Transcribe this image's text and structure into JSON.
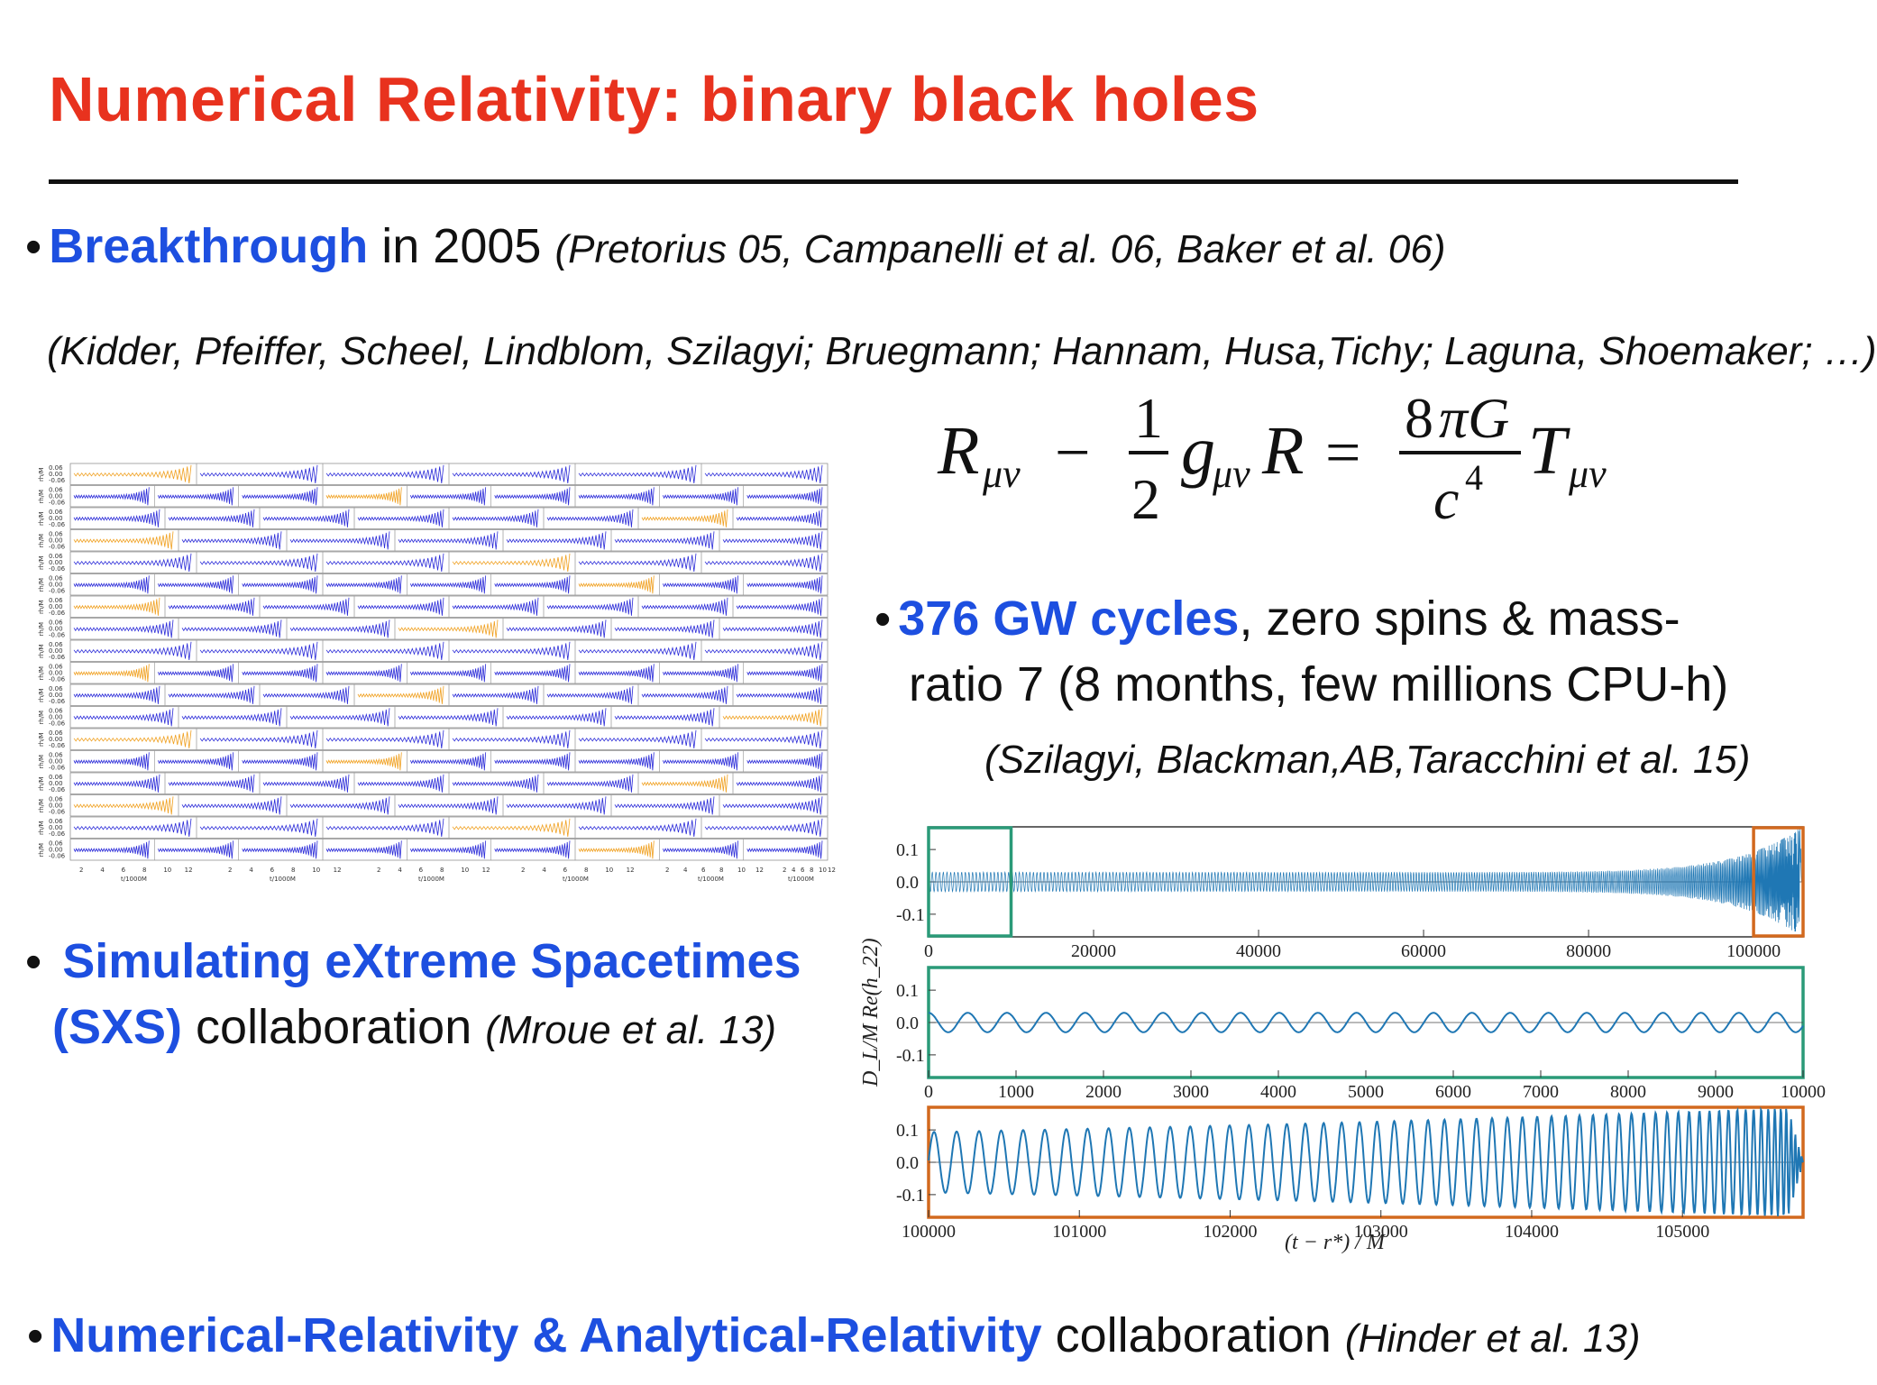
{
  "title": "Numerical Relativity: binary black holes",
  "bullet1": {
    "highlight": "Breakthrough",
    "text": " in 2005 ",
    "cite": "(Pretorius 05, Campanelli et al. 06, Baker et al. 06)"
  },
  "cite_list": "(Kidder, Pfeiffer, Scheel, Lindblom, Szilagyi; Bruegmann; Hannam, Husa,Tichy; Laguna, Shoemaker; …)",
  "equation": "R_{\\mu\\nu} - \\frac{1}{2} g_{\\mu\\nu} R = \\frac{8\\pi G}{c^4} T_{\\mu\\nu}",
  "bullet2": {
    "highlight": "376 GW cycles",
    "line1": ", zero spins & mass-",
    "line2": "ratio 7 (8 months, few millions CPU-h)",
    "cite": "(Szilagyi, Blackman,AB,Taracchini et al. 15)"
  },
  "bullet3": {
    "highlight1": "Simulating eXtreme Spacetimes",
    "highlight2": "(SXS)",
    "text": " collaboration ",
    "cite": "(Mroue et al. 13)"
  },
  "bullet4": {
    "highlight": "Numerical-Relativity & Analytical-Relativity",
    "text": " collaboration ",
    "cite": "(Hinder et al. 13)"
  },
  "grid_plot": {
    "row_label": "rh/M",
    "y_ticks": [
      "0.06",
      "0.00",
      "-0.06"
    ],
    "x_ticks": [
      "2",
      "4",
      "6",
      "8",
      "10",
      "12"
    ],
    "x_label": "t/1000M",
    "colors": {
      "wave": "#2a2ad8",
      "alt": "#f0a020"
    }
  },
  "chart_data": {
    "type": "line",
    "ylabel": "D_L/M Re(h_22)",
    "xlabel": "(t − r*) / M",
    "panels": [
      {
        "xlim": [
          0,
          106000
        ],
        "ylim": [
          -0.17,
          0.17
        ],
        "xticks": [
          "0",
          "20000",
          "40000",
          "60000",
          "80000",
          "100000"
        ],
        "yticks": [
          "0.1",
          "0.0",
          "-0.1"
        ],
        "frame_color": "#1f6fa8",
        "inset_boxes": [
          {
            "from": 0,
            "to": 10000,
            "color": "#2a9a78"
          },
          {
            "from": 100000,
            "to": 106000,
            "color": "#d2691e"
          }
        ]
      },
      {
        "xlim": [
          0,
          10000
        ],
        "ylim": [
          -0.17,
          0.17
        ],
        "xticks": [
          "0",
          "1000",
          "2000",
          "3000",
          "4000",
          "5000",
          "6000",
          "7000",
          "8000",
          "9000",
          "10000"
        ],
        "yticks": [
          "0.1",
          "0.0",
          "-0.1"
        ],
        "frame_color": "#2a9a78"
      },
      {
        "xlim": [
          100000,
          105800
        ],
        "ylim": [
          -0.17,
          0.17
        ],
        "xticks": [
          "100000",
          "101000",
          "102000",
          "103000",
          "104000",
          "105000"
        ],
        "yticks": [
          "0.1",
          "0.0",
          "-0.1"
        ],
        "frame_color": "#d2691e"
      }
    ],
    "series": [
      {
        "color": "#1f77b4",
        "cycles": 376,
        "amplitude_start": 0.03,
        "amplitude_peak": 0.17
      }
    ]
  }
}
